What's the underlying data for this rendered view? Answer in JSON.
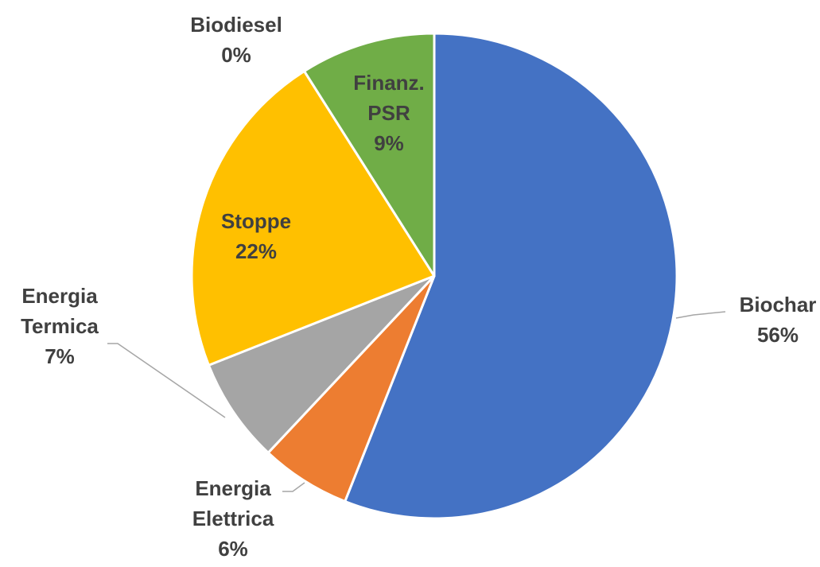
{
  "chart_data": {
    "type": "pie",
    "categories": [
      "Biochar",
      "Energia Elettrica",
      "Energia Termica",
      "Stoppe",
      "Biodiesel",
      "Finanz. PSR"
    ],
    "values": [
      56,
      6,
      7,
      22,
      0,
      9
    ],
    "value_labels": [
      "56%",
      "6%",
      "7%",
      "22%",
      "0%",
      "9%"
    ],
    "colors": [
      "#4472c4",
      "#ed7d31",
      "#a5a5a5",
      "#ffc000",
      "#5b9bd5",
      "#70ad47"
    ]
  }
}
